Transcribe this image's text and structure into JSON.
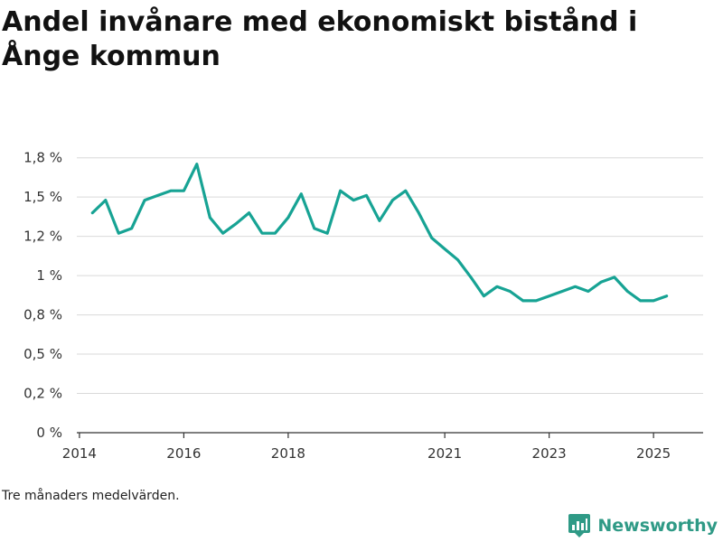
{
  "title": "Andel invånare med ekonomiskt bistånd i Ånge kommun",
  "footnote": "Tre månaders medelvärden.",
  "brand": "Newsworthy",
  "colors": {
    "line": "#17a394",
    "grid": "#d9d9d9",
    "axis": "#333333",
    "brand": "#2f9a86"
  },
  "icons": {
    "logo": "newsworthy-logo-icon"
  },
  "chart_data": {
    "type": "line",
    "title": "Andel invånare med ekonomiskt bistånd i Ånge kommun",
    "xlabel": "",
    "ylabel": "",
    "ylim": [
      0,
      1.8
    ],
    "xlim": [
      2013.95,
      2025.95
    ],
    "yticks": [
      0,
      0.25,
      0.5,
      0.75,
      1.0,
      1.25,
      1.5,
      1.75
    ],
    "ytick_labels": [
      "0 %",
      "0,2 %",
      "0,5 %",
      "0,8 %",
      "1 %",
      "1,2 %",
      "1,5 %",
      "1,8 %"
    ],
    "xticks": [
      2014,
      2016,
      2018,
      2021,
      2023,
      2025
    ],
    "xtick_labels": [
      "2014",
      "2016",
      "2018",
      "2021",
      "2023",
      "2025"
    ],
    "grid": true,
    "legend": "none",
    "series": [
      {
        "x": [
          2014.25,
          2014.5,
          2014.75,
          2015.0,
          2015.25,
          2015.5,
          2015.75,
          2016.0,
          2016.25,
          2016.5,
          2016.75,
          2017.0,
          2017.25,
          2017.5,
          2017.75,
          2018.0,
          2018.25,
          2018.5,
          2018.75,
          2019.0,
          2019.25,
          2019.5,
          2019.75,
          2020.0,
          2020.25,
          2020.5,
          2020.75,
          2021.0,
          2021.25,
          2021.5,
          2021.75,
          2022.0,
          2022.25,
          2022.5,
          2022.75,
          2023.0,
          2023.25,
          2023.5,
          2023.75,
          2024.0,
          2024.25,
          2024.5,
          2024.75,
          2025.0,
          2025.25
        ],
        "values": [
          1.4,
          1.48,
          1.27,
          1.3,
          1.48,
          1.51,
          1.54,
          1.54,
          1.71,
          1.37,
          1.27,
          1.33,
          1.4,
          1.27,
          1.27,
          1.37,
          1.52,
          1.3,
          1.27,
          1.54,
          1.48,
          1.51,
          1.35,
          1.48,
          1.54,
          1.4,
          1.24,
          1.17,
          1.1,
          0.99,
          0.87,
          0.93,
          0.9,
          0.84,
          0.84,
          0.87,
          0.9,
          0.93,
          0.9,
          0.96,
          0.99,
          0.9,
          0.84,
          0.84,
          0.87
        ]
      }
    ]
  }
}
